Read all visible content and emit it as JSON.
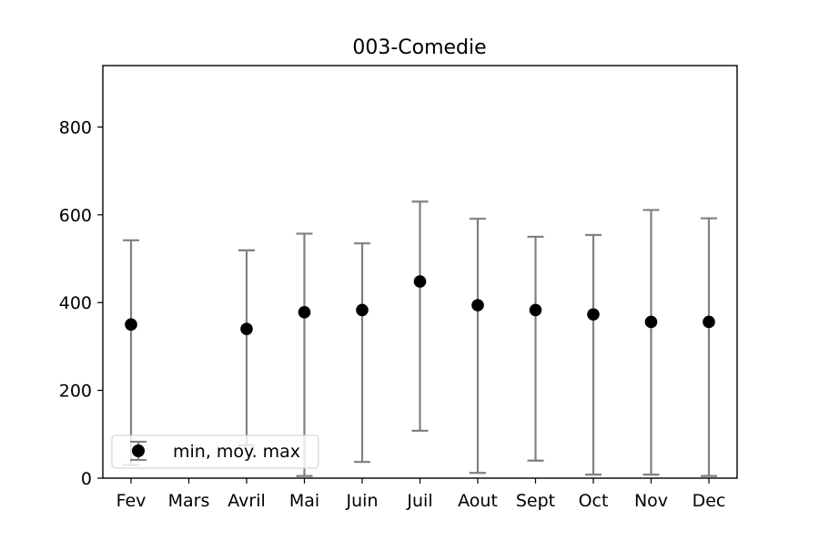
{
  "chart_data": {
    "type": "scatter",
    "title": "003-Comedie",
    "xlabel": "",
    "ylabel": "",
    "categories": [
      "Fev",
      "Mars",
      "Avril",
      "Mai",
      "Juin",
      "Juil",
      "Aout",
      "Sept",
      "Oct",
      "Nov",
      "Dec"
    ],
    "series": [
      {
        "name": "min, moy. max",
        "mean": [
          350,
          null,
          340,
          378,
          383,
          448,
          394,
          383,
          373,
          356,
          356
        ],
        "min": [
          30,
          null,
          75,
          5,
          37,
          108,
          12,
          40,
          8,
          8,
          5
        ],
        "max": [
          542,
          null,
          519,
          557,
          535,
          630,
          591,
          550,
          554,
          611,
          592
        ]
      }
    ],
    "ylim": [
      0,
      940
    ],
    "yticks": [
      0,
      200,
      400,
      600,
      800
    ],
    "grid": false,
    "legend_position": "lower-left",
    "colors": {
      "marker": "#000000",
      "errorbar": "#808080",
      "axes": "#000000"
    }
  }
}
